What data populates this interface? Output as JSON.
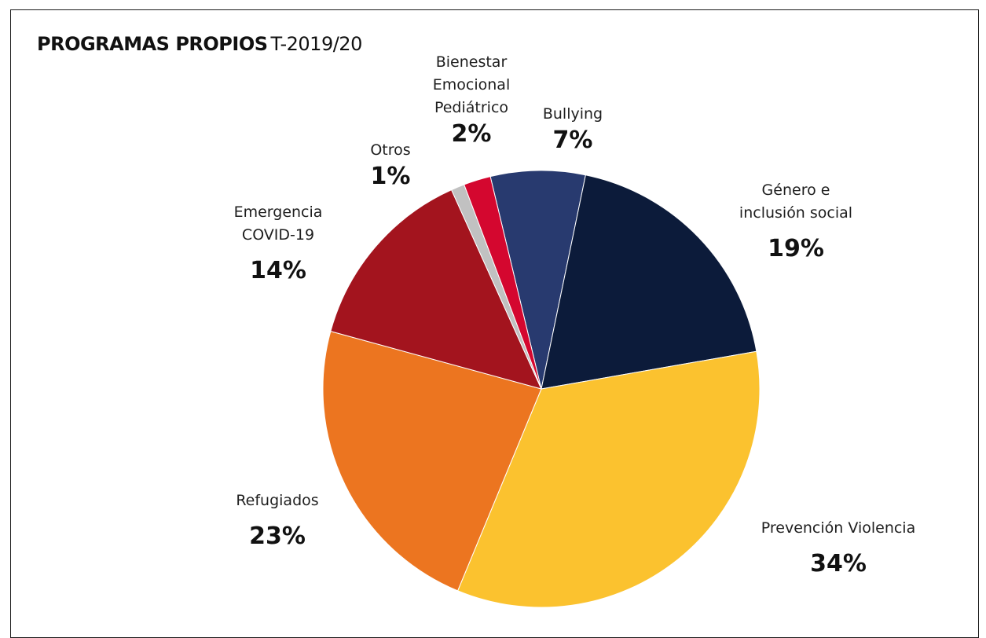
{
  "title": {
    "bold": "PROGRAMAS PROPIOS",
    "light": "T-2019/20"
  },
  "chart_data": {
    "type": "pie",
    "title": "PROGRAMAS PROPIOS T-2019/20",
    "slices": [
      {
        "label_lines": [
          "Bullying"
        ],
        "pct_label": "7%",
        "value": 7,
        "color": "#283a6f"
      },
      {
        "label_lines": [
          "Género e",
          "inclusión social"
        ],
        "pct_label": "19%",
        "value": 19,
        "color": "#0c1b3a"
      },
      {
        "label_lines": [
          "Prevención Violencia"
        ],
        "pct_label": "34%",
        "value": 34,
        "color": "#fbc22f"
      },
      {
        "label_lines": [
          "Refugiados"
        ],
        "pct_label": "23%",
        "value": 23,
        "color": "#ec7520"
      },
      {
        "label_lines": [
          "Emergencia",
          "COVID-19"
        ],
        "pct_label": "14%",
        "value": 14,
        "color": "#a3141e"
      },
      {
        "label_lines": [
          "Otros"
        ],
        "pct_label": "1%",
        "value": 1,
        "color": "#c1c1c1"
      },
      {
        "label_lines": [
          "Bienestar",
          "Emocional",
          "Pediátrico"
        ],
        "pct_label": "2%",
        "value": 2,
        "color": "#d4072f"
      }
    ]
  }
}
